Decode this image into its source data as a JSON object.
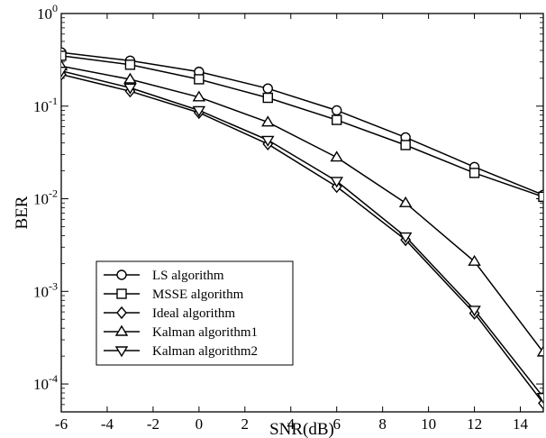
{
  "chart_data": {
    "type": "line",
    "title": "",
    "xlabel": "SNR(dB)",
    "ylabel": "BER",
    "yscale": "log",
    "xlim": [
      -6,
      15
    ],
    "ylim": [
      5e-05,
      1
    ],
    "x_ticks": [
      -6,
      -4,
      -2,
      0,
      2,
      4,
      6,
      8,
      10,
      12,
      14
    ],
    "y_ticks": [
      {
        "value": 1,
        "base": "10",
        "exp": "0"
      },
      {
        "value": 0.1,
        "base": "10",
        "exp": "-1"
      },
      {
        "value": 0.01,
        "base": "10",
        "exp": "-2"
      },
      {
        "value": 0.001,
        "base": "10",
        "exp": "-3"
      },
      {
        "value": 0.0001,
        "base": "10",
        "exp": "-4"
      }
    ],
    "grid": false,
    "legend_position": "bottom-left",
    "x": [
      -6,
      -3,
      0,
      3,
      6,
      9,
      12,
      15
    ],
    "series": [
      {
        "name": "LS algorithm",
        "marker": "circle",
        "values": [
          0.38,
          0.31,
          0.235,
          0.155,
          0.09,
          0.046,
          0.022,
          0.011
        ]
      },
      {
        "name": "MSSE algorithm",
        "marker": "square",
        "values": [
          0.35,
          0.28,
          0.195,
          0.123,
          0.071,
          0.038,
          0.019,
          0.0105
        ]
      },
      {
        "name": "Ideal algorithm",
        "marker": "diamond",
        "values": [
          0.22,
          0.145,
          0.085,
          0.039,
          0.0135,
          0.0036,
          0.00058,
          6.2e-05
        ]
      },
      {
        "name": "Kalman algorithm1",
        "marker": "triangle-up",
        "values": [
          0.27,
          0.195,
          0.125,
          0.067,
          0.028,
          0.009,
          0.0021,
          0.00022
        ]
      },
      {
        "name": "Kalman algorithm2",
        "marker": "triangle-down",
        "values": [
          0.24,
          0.158,
          0.09,
          0.043,
          0.0155,
          0.0039,
          0.00063,
          7.2e-05
        ]
      }
    ]
  }
}
